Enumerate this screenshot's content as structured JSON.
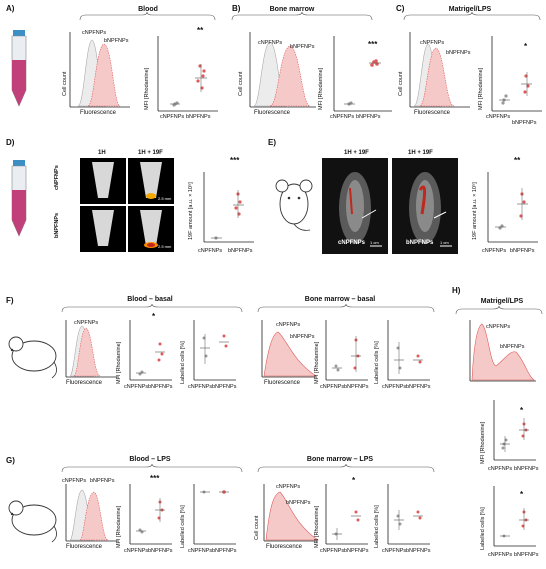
{
  "panels": {
    "A": {
      "letter": "A)",
      "title": "Blood",
      "hist_ylabel": "Cell count",
      "hist_xlabel": "Fluorescence",
      "leg1": "cNPFNPs",
      "leg2": "bNPFNPs",
      "ylabel": "MFI [Rhodamine]",
      "sig": "**",
      "x1": "cNPFNPs",
      "x2": "bNPFNPs",
      "yticks": [
        "0",
        "20",
        "40",
        "60",
        "80"
      ]
    },
    "B": {
      "letter": "B)",
      "title": "Bone marrow",
      "hist_ylabel": "Cell count",
      "hist_xlabel": "Fluorescence",
      "leg1": "cNPFNPs",
      "leg2": "bNPFNPs",
      "ylabel": "MFI [Rhodamine]",
      "sig": "***",
      "x1": "cNPFNPs",
      "x2": "bNPFNPs",
      "yticks": [
        "0",
        "20",
        "40",
        "60",
        "80"
      ]
    },
    "C": {
      "letter": "C)",
      "title": "Matrigel/LPS",
      "hist_ylabel": "Cell count",
      "hist_xlabel": "Fluorescence",
      "leg1": "cNPFNPs",
      "leg2": "bNPFNPs",
      "ylabel": "MFI [Rhodamine]",
      "sig": "*",
      "x1": "cNPFNPs",
      "x2": "bNPFNPs",
      "yticks": [
        "0",
        "20",
        "40",
        "60"
      ]
    },
    "D": {
      "letter": "D)",
      "h1": "1H",
      "h2": "1H + 19F",
      "row1": "cNPFNPs",
      "row2": "bNPFNPs",
      "scale1": "2.5 mm",
      "scale2": "2.5 mm",
      "ylabel": "19F amount [a.u. × 10⁵]",
      "sig": "***",
      "x1": "cNPFNPs",
      "x2": "bNPFNPs",
      "yticks": [
        "0",
        "20",
        "40",
        "60",
        "80",
        "100"
      ]
    },
    "E": {
      "letter": "E)",
      "h1": "1H + 19F",
      "h2": "1H + 19F",
      "cap1": "cNPFNPs",
      "cap2": "bNPFNPs",
      "scale1": "1 cm",
      "scale2": "1 cm",
      "ylabel": "19F amount [a.u. × 10⁵]",
      "sig": "**",
      "x1": "cNPFNPs",
      "x2": "bNPFNPs",
      "yticks": [
        "0",
        "2",
        "4",
        "6",
        "8",
        "10"
      ]
    },
    "F": {
      "letter": "F)",
      "title1": "Blood – basal",
      "title2": "Bone marrow – basal",
      "leg1": "cNPFNPs",
      "leg2": "bNPFNPs",
      "hist_ylabel": "Cell count",
      "hist_xlabel": "Fluorescence",
      "ylabel1": "MFI [Rhodamine]",
      "ylabel2": "Labelled cells [%]",
      "sig": "*",
      "x1": "cNPFNPs",
      "x2": "bNPFNPs"
    },
    "G": {
      "letter": "G)",
      "title1": "Blood – LPS",
      "title2": "Bone marrow – LPS",
      "leg1": "cNPFNPs",
      "leg2": "bNPFNPs",
      "hist_ylabel": "Cell count",
      "hist_xlabel": "Fluorescence",
      "ylabel1": "MFI [Rhodamine]",
      "ylabel2": "Labelled cells [%]",
      "sig1": "***",
      "sig2": "*",
      "x1": "cNPFNPs",
      "x2": "bNPFNPs"
    },
    "H": {
      "letter": "H)",
      "title": "Matrigel/LPS",
      "leg1": "cNPFNPs",
      "leg2": "bNPFNPs",
      "ylabel1": "MFI [Rhodamine]",
      "ylabel2": "Labelled cells [%]",
      "sig": "*",
      "x1": "cNPFNPs",
      "x2": "bNPFNPs"
    }
  },
  "colors": {
    "control": "#9a9a9a",
    "bnp": "#e05a5a",
    "bnp_fill": "#f6c9c9",
    "ctrl_fill": "#e9e9e9",
    "tube": "#c2407a"
  }
}
